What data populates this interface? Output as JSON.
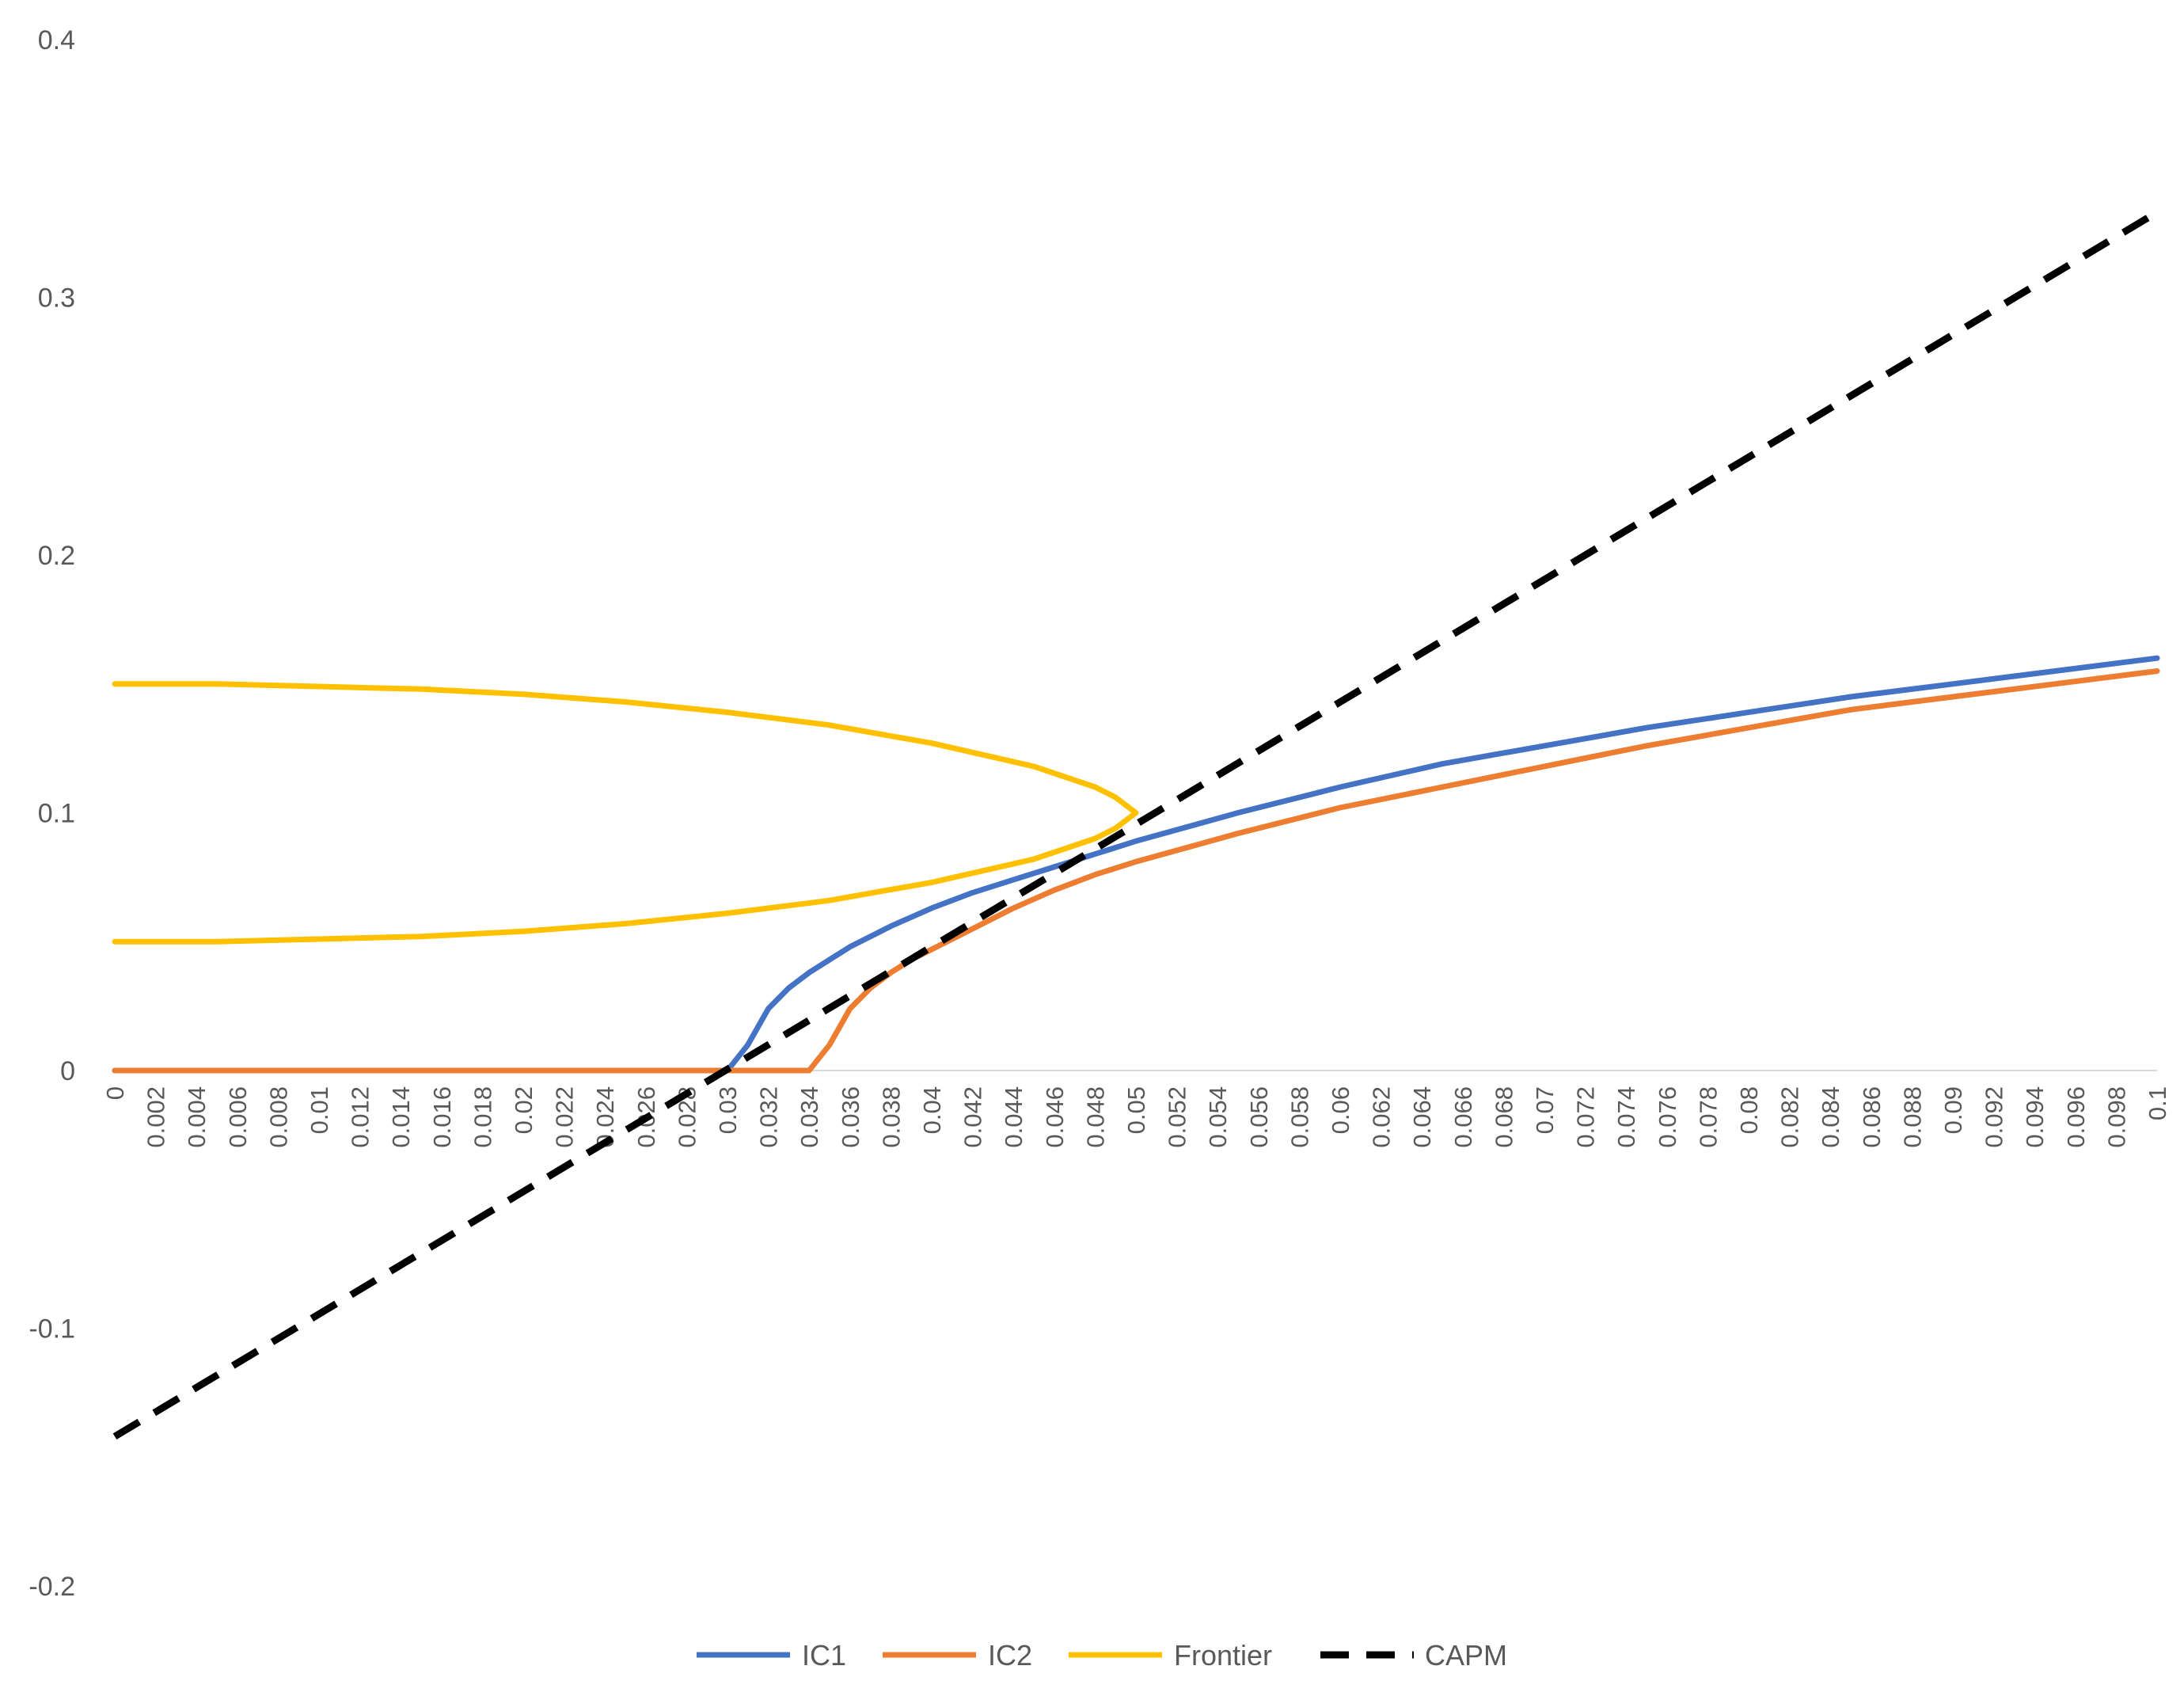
{
  "chart_data": {
    "type": "line",
    "title": "",
    "xlabel": "",
    "ylabel": "",
    "xlim": [
      0,
      0.1
    ],
    "ylim": [
      -0.2,
      0.4
    ],
    "yticks": [
      "0.4",
      "0.3",
      "0.2",
      "0.1",
      "0",
      "-0.1",
      "-0.2"
    ],
    "xtick_labels": [
      "0",
      "0.002",
      "0.004",
      "0.006",
      "0.008",
      "0.01",
      "0.012",
      "0.014",
      "0.016",
      "0.018",
      "0.02",
      "0.022",
      "0.024",
      "0.026",
      "0.028",
      "0.03",
      "0.032",
      "0.034",
      "0.036",
      "0.038",
      "0.04",
      "0.042",
      "0.044",
      "0.046",
      "0.048",
      "0.05",
      "0.052",
      "0.054",
      "0.056",
      "0.058",
      "0.06",
      "0.062",
      "0.064",
      "0.066",
      "0.068",
      "0.07",
      "0.072",
      "0.074",
      "0.076",
      "0.078",
      "0.08",
      "0.082",
      "0.084",
      "0.086",
      "0.088",
      "0.09",
      "0.092",
      "0.094",
      "0.096",
      "0.098",
      "0.1"
    ],
    "grid": false,
    "legend_position": "bottom",
    "series": [
      {
        "name": "IC1",
        "color": "#4472C4",
        "dash": false,
        "points": [
          [
            0,
            0
          ],
          [
            0.03,
            0
          ],
          [
            0.031,
            0.01
          ],
          [
            0.032,
            0.024
          ],
          [
            0.033,
            0.032
          ],
          [
            0.034,
            0.038
          ],
          [
            0.035,
            0.043
          ],
          [
            0.036,
            0.048
          ],
          [
            0.038,
            0.056
          ],
          [
            0.04,
            0.063
          ],
          [
            0.042,
            0.069
          ],
          [
            0.044,
            0.074
          ],
          [
            0.046,
            0.079
          ],
          [
            0.048,
            0.084
          ],
          [
            0.05,
            0.089
          ],
          [
            0.055,
            0.1
          ],
          [
            0.06,
            0.11
          ],
          [
            0.065,
            0.119
          ],
          [
            0.07,
            0.126
          ],
          [
            0.075,
            0.133
          ],
          [
            0.08,
            0.139
          ],
          [
            0.085,
            0.145
          ],
          [
            0.09,
            0.15
          ],
          [
            0.095,
            0.155
          ],
          [
            0.1,
            0.16
          ]
        ]
      },
      {
        "name": "IC2",
        "color": "#ED7D31",
        "dash": false,
        "points": [
          [
            0,
            0
          ],
          [
            0.034,
            0
          ],
          [
            0.035,
            0.01
          ],
          [
            0.036,
            0.024
          ],
          [
            0.037,
            0.032
          ],
          [
            0.038,
            0.038
          ],
          [
            0.039,
            0.043
          ],
          [
            0.04,
            0.047
          ],
          [
            0.042,
            0.055
          ],
          [
            0.044,
            0.063
          ],
          [
            0.046,
            0.07
          ],
          [
            0.048,
            0.076
          ],
          [
            0.05,
            0.081
          ],
          [
            0.055,
            0.092
          ],
          [
            0.06,
            0.102
          ],
          [
            0.065,
            0.11
          ],
          [
            0.07,
            0.118
          ],
          [
            0.075,
            0.126
          ],
          [
            0.08,
            0.133
          ],
          [
            0.085,
            0.14
          ],
          [
            0.09,
            0.145
          ],
          [
            0.095,
            0.15
          ],
          [
            0.1,
            0.155
          ]
        ]
      },
      {
        "name": "Frontier",
        "color": "#FFC000",
        "dash": false,
        "points": [
          [
            0,
            0.15
          ],
          [
            0.005,
            0.15
          ],
          [
            0.01,
            0.149
          ],
          [
            0.015,
            0.148
          ],
          [
            0.02,
            0.146
          ],
          [
            0.025,
            0.143
          ],
          [
            0.03,
            0.139
          ],
          [
            0.035,
            0.134
          ],
          [
            0.04,
            0.127
          ],
          [
            0.045,
            0.118
          ],
          [
            0.048,
            0.11
          ],
          [
            0.049,
            0.106
          ],
          [
            0.05,
            0.1
          ],
          [
            0.049,
            0.094
          ],
          [
            0.048,
            0.09
          ],
          [
            0.045,
            0.082
          ],
          [
            0.04,
            0.073
          ],
          [
            0.035,
            0.066
          ],
          [
            0.03,
            0.061
          ],
          [
            0.025,
            0.057
          ],
          [
            0.02,
            0.054
          ],
          [
            0.015,
            0.052
          ],
          [
            0.01,
            0.051
          ],
          [
            0.005,
            0.05
          ],
          [
            0,
            0.05
          ]
        ]
      },
      {
        "name": "CAPM",
        "color": "#000000",
        "dash": true,
        "points": [
          [
            0,
            -0.142
          ],
          [
            0.1,
            0.333
          ]
        ]
      }
    ]
  }
}
